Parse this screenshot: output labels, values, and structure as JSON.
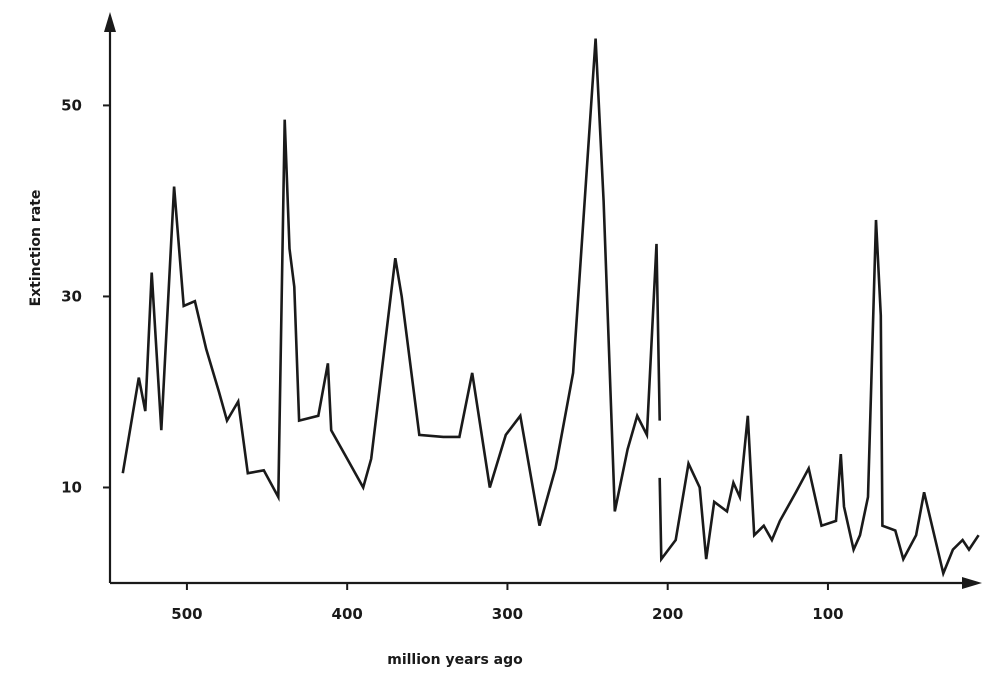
{
  "chart_data": {
    "type": "line",
    "title": "",
    "xlabel": "million years ago",
    "ylabel": "Extinction rate",
    "x_reversed": true,
    "xlim": [
      548,
      2
    ],
    "ylim": [
      0,
      58
    ],
    "xticks": [
      500,
      400,
      300,
      200,
      100
    ],
    "yticks": [
      10,
      30,
      50
    ],
    "xtick_labels": [
      "500",
      "400",
      "300",
      "200",
      "100"
    ],
    "ytick_labels": [
      "10",
      "30",
      "50"
    ],
    "grid": false,
    "legend": "none",
    "line_color": "#1a1a1a",
    "segments": [
      [
        [
          540,
          11.5
        ],
        [
          530,
          21.5
        ],
        [
          526,
          18
        ],
        [
          522,
          32.5
        ],
        [
          516,
          16
        ],
        [
          508,
          41.5
        ],
        [
          502,
          29
        ],
        [
          495,
          29.5
        ],
        [
          488,
          24.5
        ],
        [
          480,
          20
        ],
        [
          475,
          17
        ],
        [
          468,
          19
        ],
        [
          462,
          11.5
        ],
        [
          452,
          11.8
        ],
        [
          443,
          9
        ],
        [
          439,
          48.5
        ],
        [
          436,
          35
        ],
        [
          433,
          31
        ],
        [
          430,
          17
        ],
        [
          418,
          17.5
        ],
        [
          412,
          23
        ],
        [
          410,
          16
        ],
        [
          400,
          13
        ],
        [
          390,
          10
        ],
        [
          385,
          13
        ],
        [
          370,
          34
        ],
        [
          366,
          30
        ],
        [
          355,
          15.5
        ],
        [
          340,
          15.3
        ],
        [
          330,
          15.3
        ],
        [
          322,
          22
        ],
        [
          311,
          10
        ],
        [
          301,
          15.5
        ],
        [
          292,
          17.5
        ],
        [
          280,
          6
        ],
        [
          270,
          12
        ],
        [
          259,
          22
        ],
        [
          245,
          57
        ],
        [
          240,
          40
        ],
        [
          233,
          7.5
        ],
        [
          225,
          14
        ],
        [
          219,
          17.5
        ],
        [
          213,
          15.5
        ],
        [
          207,
          35.5
        ],
        [
          205,
          17
        ]
      ],
      [
        [
          205,
          11
        ],
        [
          204,
          2.5
        ],
        [
          195,
          4.5
        ],
        [
          187,
          12.5
        ],
        [
          180,
          10
        ],
        [
          176,
          2.5
        ],
        [
          171,
          8.5
        ],
        [
          163,
          7.5
        ],
        [
          159,
          10.5
        ],
        [
          155,
          9
        ],
        [
          150,
          17.5
        ],
        [
          146,
          5
        ],
        [
          140,
          6
        ],
        [
          135,
          4.5
        ],
        [
          130,
          6.5
        ],
        [
          120,
          9.5
        ],
        [
          112,
          12
        ],
        [
          104,
          6
        ],
        [
          95,
          6.5
        ],
        [
          92,
          13.5
        ],
        [
          90,
          8
        ],
        [
          84,
          3.5
        ],
        [
          80,
          5
        ],
        [
          75,
          9
        ],
        [
          70,
          38
        ],
        [
          67,
          28
        ],
        [
          66,
          6
        ],
        [
          58,
          5.5
        ],
        [
          53,
          2.5
        ],
        [
          45,
          5
        ],
        [
          40,
          9.5
        ],
        [
          28,
          1
        ],
        [
          22,
          3.5
        ],
        [
          16,
          4.5
        ],
        [
          12,
          3.5
        ],
        [
          6,
          5
        ]
      ]
    ]
  }
}
